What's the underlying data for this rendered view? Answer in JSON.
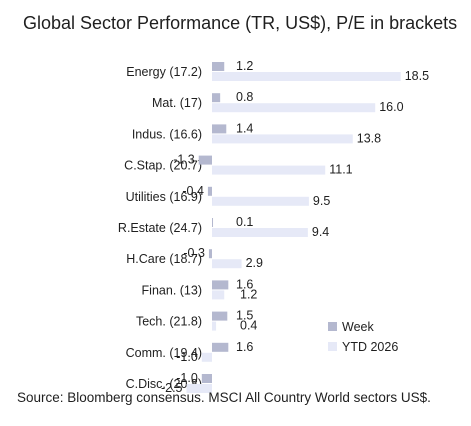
{
  "chart_data": {
    "type": "bar",
    "orientation": "horizontal",
    "title": "Global Sector Performance (TR, US$), P/E in brackets",
    "source": "Source: Bloomberg consensus. MSCI All Country World sectors US$.",
    "categories": [
      "Energy (17.2)",
      "Mat. (17)",
      "Indus. (16.6)",
      "C.Stap. (20.7)",
      "Utilities (16.9)",
      "R.Estate (24.7)",
      "H.Care (18.7)",
      "Finan. (13)",
      "Tech. (21.8)",
      "Comm. (19.4)",
      "C.Disc. (20.8)"
    ],
    "series": [
      {
        "name": "Week",
        "color": "#b4b8cf",
        "values": [
          1.2,
          0.8,
          1.4,
          -1.3,
          -0.4,
          0.1,
          -0.3,
          1.6,
          1.5,
          1.6,
          -1.0
        ]
      },
      {
        "name": "YTD 2026",
        "color": "#e6e9f7",
        "values": [
          18.5,
          16.0,
          13.8,
          11.1,
          9.5,
          9.4,
          2.9,
          1.2,
          0.4,
          -1.0,
          -2.5
        ]
      }
    ],
    "value_labels": {
      "Week": [
        "1.2",
        "0.8",
        "1.4",
        "-1.3",
        "-0.4",
        "0.1",
        "-0.3",
        "1.6",
        "1.5",
        "1.6",
        "-1.0"
      ],
      "YTD 2026": [
        "18.5",
        "16.0",
        "13.8",
        "11.1",
        "9.5",
        "9.4",
        "2.9",
        "1.2",
        "0.4",
        "-1.0",
        "-2.5"
      ]
    },
    "legend_position": "bottom-right",
    "grid": false
  }
}
